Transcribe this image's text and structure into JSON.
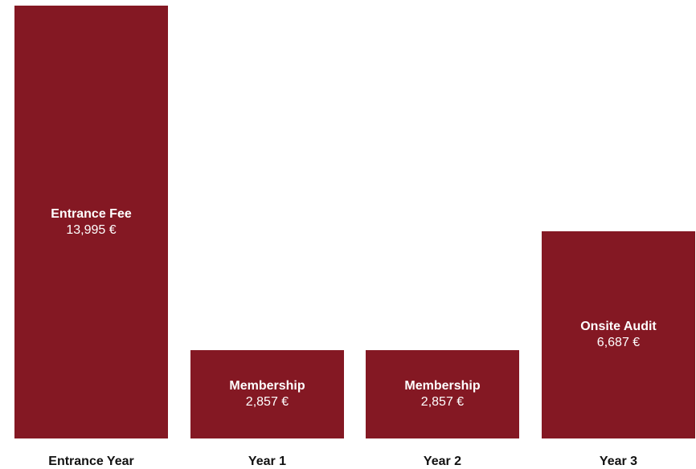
{
  "chart_data": {
    "type": "bar",
    "categories": [
      "Entrance Year",
      "Year 1",
      "Year 2",
      "Year 3"
    ],
    "bars": [
      {
        "category": "Entrance Year",
        "label": "Entrance Fee",
        "value": 13995,
        "value_text": "13,995 €"
      },
      {
        "category": "Year 1",
        "label": "Membership",
        "value": 2857,
        "value_text": "2,857 €"
      },
      {
        "category": "Year 2",
        "label": "Membership",
        "value": 2857,
        "value_text": "2,857 €"
      },
      {
        "category": "Year 3",
        "label": "Onsite Audit",
        "value": 6687,
        "value_text": "6,687 €"
      }
    ],
    "ylim": [
      0,
      13995
    ],
    "grid": false,
    "legend": "none",
    "title": "",
    "xlabel": "",
    "ylabel": "",
    "colors": {
      "bar": "#841823",
      "bar_text": "#ffffff",
      "axis_text": "#111111"
    }
  }
}
